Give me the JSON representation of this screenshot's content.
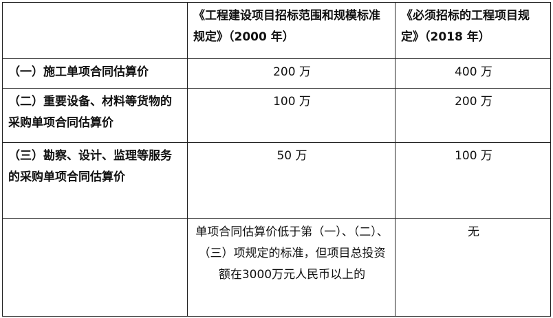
{
  "header": {
    "blank": "",
    "col1": "《工程建设项目招标范围和规模标准规定》（2000 年）",
    "col2": "《必须招标的工程项目规定》（2018 年）"
  },
  "rows": [
    {
      "label": "（一）施工单项合同估算价",
      "v2000": "200 万",
      "v2018": "400 万"
    },
    {
      "label": "（二）重要设备、材料等货物的采购单项合同估算价",
      "v2000": "100 万",
      "v2018": "200 万"
    },
    {
      "label": "（三）勘察、设计、监理等服务的采购单项合同估算价",
      "v2000": "50 万",
      "v2018": "100 万"
    },
    {
      "label": "",
      "v2000": "单项合同估算价低于第（一）、（二）、（三）项规定的标准，但项目总投资额在3000万元人民币以上的",
      "v2018": "无"
    }
  ]
}
